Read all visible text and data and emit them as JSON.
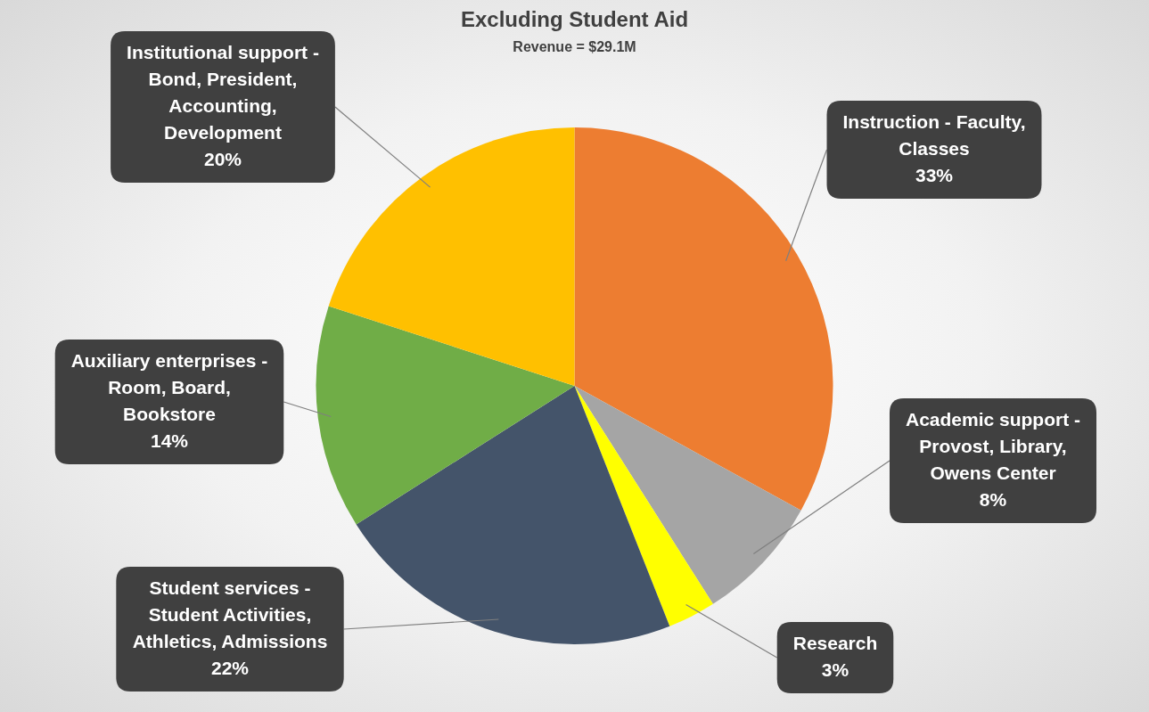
{
  "chart_data": {
    "type": "pie",
    "title": "Excluding Student Aid",
    "subtitle": "Revenue = $29.1M",
    "categories": [
      "Instruction - Faculty, Classes",
      "Academic support - Provost, Library, Owens Center",
      "Research",
      "Student services - Student Activities, Athletics, Admissions",
      "Auxiliary enterprises - Room, Board, Bookstore",
      "Institutional support - Bond, President, Accounting, Development"
    ],
    "values": [
      33,
      8,
      3,
      22,
      14,
      20
    ],
    "value_labels": [
      "33%",
      "8%",
      "3%",
      "22%",
      "14%",
      "20%"
    ],
    "colors": [
      "#ed7d31",
      "#a5a5a5",
      "#ffff00",
      "#44546a",
      "#70ad47",
      "#ffc000"
    ],
    "legend": false
  }
}
